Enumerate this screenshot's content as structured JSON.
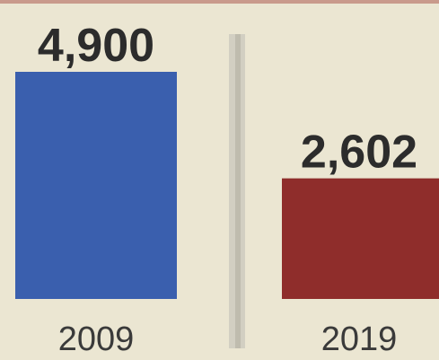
{
  "chart_data": {
    "type": "bar",
    "categories": [
      "2009",
      "2019"
    ],
    "values": [
      4900,
      2602
    ],
    "value_labels": [
      "4,900",
      "2,602"
    ],
    "colors": [
      "#3a5fae",
      "#8f2d2b"
    ],
    "title": "",
    "xlabel": "",
    "ylabel": "",
    "ylim": [
      0,
      4900
    ],
    "grid": false,
    "legend": "none"
  }
}
